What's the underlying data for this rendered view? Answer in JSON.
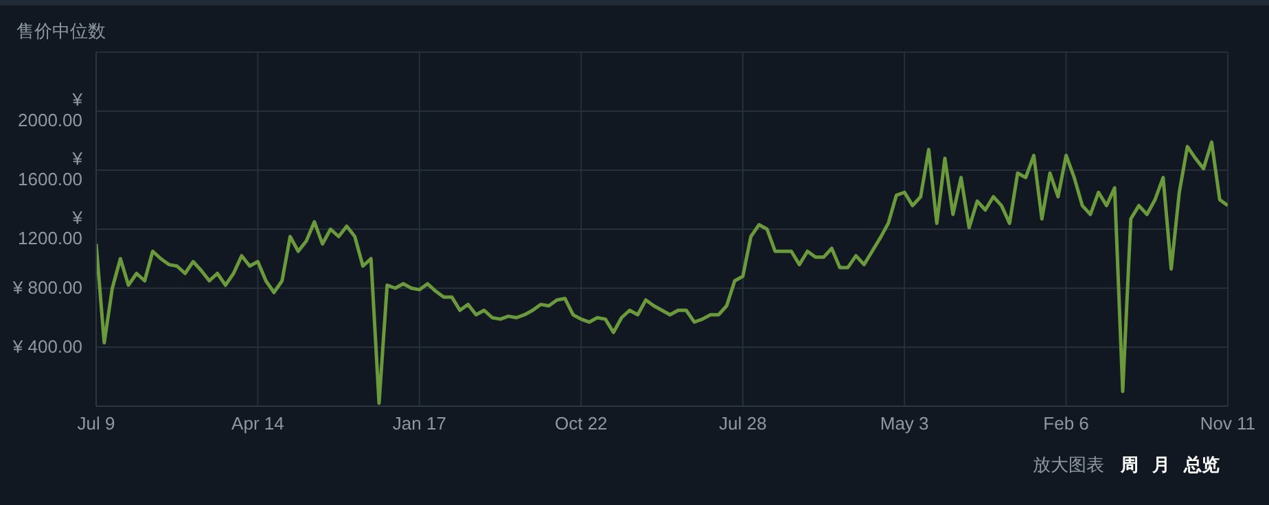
{
  "chart_data": {
    "type": "line",
    "title": "售价中位数",
    "categories": [
      "Jul 9",
      null,
      null,
      null,
      null,
      null,
      null,
      null,
      null,
      null,
      null,
      null,
      null,
      null,
      null,
      null,
      null,
      null,
      null,
      null,
      "Apr 14",
      null,
      null,
      null,
      null,
      null,
      null,
      null,
      null,
      null,
      null,
      null,
      null,
      null,
      null,
      null,
      null,
      null,
      null,
      null,
      "Jan 17",
      null,
      null,
      null,
      null,
      null,
      null,
      null,
      null,
      null,
      null,
      null,
      null,
      null,
      null,
      null,
      null,
      null,
      null,
      null,
      "Oct 22",
      null,
      null,
      null,
      null,
      null,
      null,
      null,
      null,
      null,
      null,
      null,
      null,
      null,
      null,
      null,
      null,
      null,
      null,
      null,
      "Jul 28",
      null,
      null,
      null,
      null,
      null,
      null,
      null,
      null,
      null,
      null,
      null,
      null,
      null,
      null,
      null,
      null,
      null,
      null,
      null,
      "May 3",
      null,
      null,
      null,
      null,
      null,
      null,
      null,
      null,
      null,
      null,
      null,
      null,
      null,
      null,
      null,
      null,
      null,
      null,
      null,
      "Feb 6",
      null,
      null,
      null,
      null,
      null,
      null,
      null,
      null,
      null,
      null,
      null,
      null,
      null,
      null,
      null,
      null,
      null,
      null,
      null,
      "Nov 11"
    ],
    "series": [
      {
        "color": "#6b9a3c",
        "values": [
          1100,
          430,
          800,
          1000,
          820,
          900,
          850,
          1050,
          1000,
          960,
          950,
          900,
          980,
          920,
          850,
          900,
          820,
          900,
          1020,
          950,
          980,
          850,
          770,
          850,
          1150,
          1050,
          1120,
          1250,
          1100,
          1200,
          1150,
          1220,
          1150,
          950,
          1000,
          20,
          820,
          800,
          830,
          800,
          790,
          830,
          780,
          740,
          740,
          650,
          690,
          620,
          650,
          600,
          590,
          610,
          600,
          620,
          650,
          690,
          680,
          720,
          730,
          620,
          590,
          570,
          600,
          590,
          500,
          600,
          650,
          620,
          720,
          680,
          650,
          620,
          650,
          650,
          570,
          590,
          620,
          620,
          680,
          850,
          880,
          1150,
          1230,
          1200,
          1050,
          1050,
          1050,
          960,
          1050,
          1010,
          1010,
          1070,
          940,
          940,
          1020,
          960,
          1050,
          1140,
          1240,
          1430,
          1450,
          1360,
          1420,
          1740,
          1240,
          1680,
          1300,
          1550,
          1210,
          1390,
          1330,
          1420,
          1360,
          1240,
          1580,
          1550,
          1700,
          1270,
          1580,
          1420,
          1700,
          1550,
          1360,
          1300,
          1450,
          1360,
          1480,
          100,
          1270,
          1360,
          1300,
          1400,
          1550,
          930,
          1450,
          1760,
          1680,
          1610,
          1790,
          1400,
          1360
        ]
      }
    ],
    "ylim": [
      0,
      2400
    ],
    "yticks": [
      {
        "value": 400,
        "label": "¥ 400.00"
      },
      {
        "value": 800,
        "label": "¥ 800.00"
      },
      {
        "value": 1200,
        "label": "¥ 1200.00"
      },
      {
        "value": 1600,
        "label": "¥ 1600.00"
      },
      {
        "value": 2000,
        "label": "¥ 2000.00"
      }
    ],
    "grid": true,
    "legend": false,
    "marker": "none",
    "line_style": "solid",
    "annotations": [
      "放大图表",
      "周",
      "月",
      "总览"
    ]
  }
}
